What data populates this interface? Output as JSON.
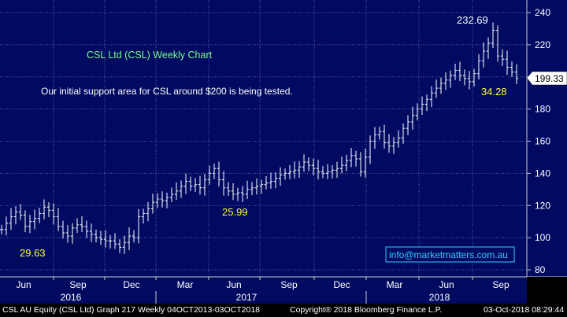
{
  "chart_data": {
    "type": "bar",
    "style": "ohlc",
    "title": "CSL Ltd (CSL) Weekly Chart",
    "annotation": "Our initial support area for CSL around $200 is being tested.",
    "contact": "info@marketmatters.com.au",
    "last_price": "199.33",
    "callouts": [
      {
        "text": "232.69",
        "color": "#ffffff"
      },
      {
        "text": "34.28",
        "color": "#ffff33"
      },
      {
        "text": "25.99",
        "color": "#ffff33"
      },
      {
        "text": "29.63",
        "color": "#ffff33"
      }
    ],
    "ylim": [
      80,
      240
    ],
    "yticks": [
      "240",
      "220",
      "200",
      "180",
      "160",
      "140",
      "120",
      "100",
      "80"
    ],
    "ytick_values": [
      240,
      220,
      200,
      180,
      160,
      140,
      120,
      100,
      80
    ],
    "month_labels": [
      "Jun",
      "Sep",
      "Dec",
      "Mar",
      "Jun",
      "Sep",
      "Dec",
      "Mar",
      "Jun",
      "Sep"
    ],
    "year_labels": [
      "2016",
      "2017",
      "2018"
    ],
    "grid": true,
    "legend": "none",
    "colors": {
      "background": "#000a60",
      "bars": "#ffffff",
      "grid": "#5a63b0",
      "title": "#7CFC8A",
      "callout": "#ffff33",
      "contact": "#33ccff"
    },
    "series": [
      {
        "values": [
          105,
          109,
          113,
          116,
          114,
          107,
          110,
          112,
          115,
          119,
          117,
          113,
          107,
          103,
          101,
          106,
          108,
          107,
          104,
          102,
          100,
          99,
          98,
          98,
          96,
          94,
          97,
          101,
          100,
          113,
          115,
          118,
          122,
          124,
          123,
          125,
          127,
          129,
          132,
          135,
          132,
          133,
          131,
          136,
          140,
          143,
          136,
          131,
          129,
          127,
          128,
          127,
          130,
          131,
          132,
          133,
          134,
          135,
          137,
          139,
          140,
          141,
          142,
          144,
          147,
          145,
          143,
          141,
          140,
          141,
          142,
          143,
          145,
          148,
          151,
          149,
          141,
          150,
          160,
          164,
          166,
          159,
          157,
          159,
          162,
          168,
          172,
          176,
          180,
          183,
          186,
          190,
          193,
          196,
          198,
          201,
          204,
          201,
          199,
          197,
          202,
          210,
          216,
          221,
          229,
          213,
          211,
          206,
          203,
          199
        ]
      }
    ]
  },
  "footer": {
    "left": "CSL AU Equity (CSL Ltd) Graph 217  Weekly 04OCT2013-03OCT2018",
    "middle": "Copyright® 2018 Bloomberg Finance L.P.",
    "right": "03-Oct-2018 08:29:44"
  }
}
